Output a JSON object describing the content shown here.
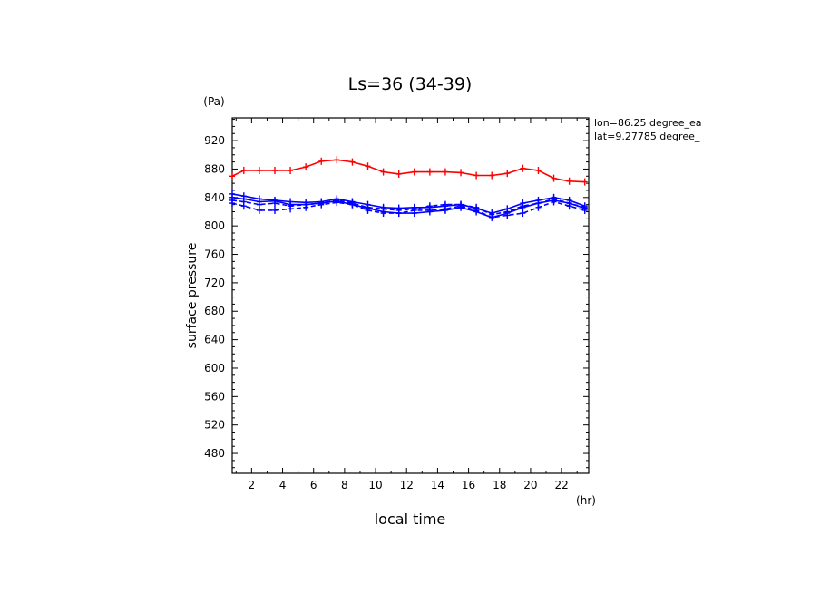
{
  "chart_data": {
    "type": "line",
    "title": "Ls=36 (34-39)",
    "xlabel": "local time",
    "xunit": "(hr)",
    "ylabel": "surface pressure",
    "yunit": "(Pa)",
    "xlim": [
      0.75,
      23.75
    ],
    "ylim": [
      452,
      952
    ],
    "xticks": [
      2,
      4,
      6,
      8,
      10,
      12,
      14,
      16,
      18,
      20,
      22
    ],
    "yticks": [
      480,
      520,
      560,
      600,
      640,
      680,
      720,
      760,
      800,
      840,
      880,
      920
    ],
    "annotations": [
      "lon=86.25 degree_ea",
      "lat=9.27785 degree_"
    ],
    "grid": false,
    "x": [
      0.75,
      1.5,
      2.5,
      3.5,
      4.5,
      5.5,
      6.5,
      7.5,
      8.5,
      9.5,
      10.5,
      11.5,
      12.5,
      13.5,
      14.5,
      15.5,
      16.5,
      17.5,
      18.5,
      19.5,
      20.5,
      21.5,
      22.5,
      23.5
    ],
    "series": [
      {
        "color": "#ff0000",
        "style": "solid",
        "values": [
          870,
          878,
          878,
          878,
          878,
          883,
          891,
          893,
          890,
          884,
          876,
          873,
          876,
          876,
          876,
          875,
          871,
          871,
          874,
          881,
          878,
          867,
          863,
          862
        ]
      },
      {
        "color": "#0000ff",
        "style": "solid",
        "values": [
          845,
          842,
          838,
          836,
          834,
          833,
          834,
          838,
          834,
          830,
          826,
          825,
          826,
          826,
          828,
          830,
          825,
          818,
          824,
          832,
          836,
          840,
          836,
          828
        ]
      },
      {
        "color": "#0000ff",
        "style": "solid",
        "values": [
          840,
          838,
          834,
          835,
          830,
          830,
          832,
          835,
          830,
          825,
          820,
          818,
          818,
          820,
          822,
          826,
          820,
          812,
          818,
          826,
          832,
          836,
          832,
          825
        ]
      },
      {
        "color": "#0000ff",
        "style": "dashed",
        "values": [
          832,
          828,
          822,
          822,
          824,
          826,
          830,
          833,
          830,
          822,
          818,
          818,
          822,
          822,
          824,
          828,
          822,
          812,
          815,
          818,
          826,
          834,
          828,
          822
        ]
      },
      {
        "color": "#0000ff",
        "style": "dashed",
        "values": [
          836,
          834,
          830,
          832,
          828,
          830,
          832,
          836,
          832,
          826,
          824,
          822,
          824,
          828,
          830,
          830,
          826,
          816,
          820,
          828,
          832,
          838,
          832,
          826
        ]
      }
    ]
  }
}
